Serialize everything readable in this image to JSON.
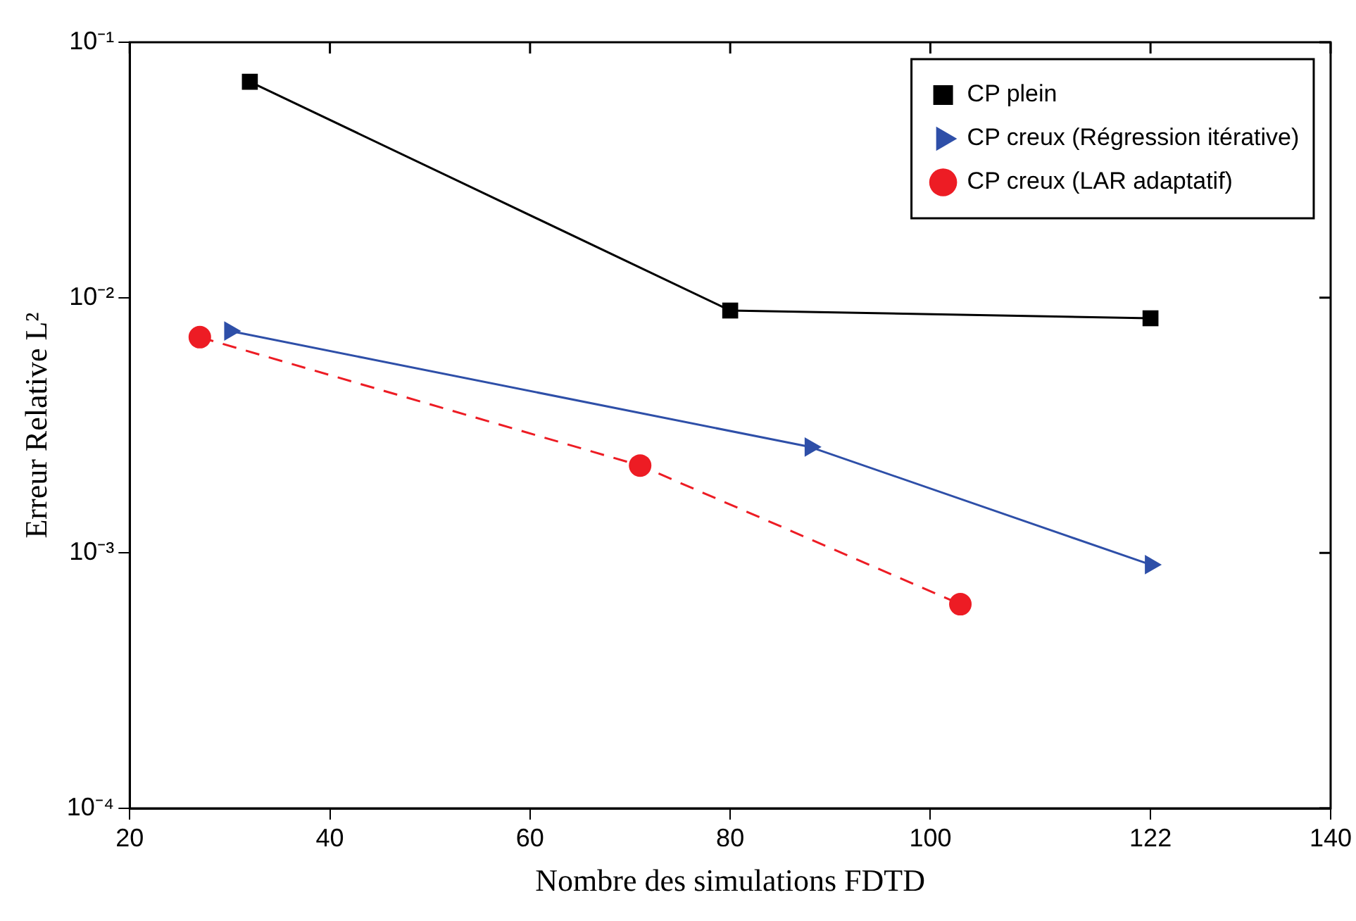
{
  "chart_data": {
    "type": "line",
    "xlabel": "Nombre des simulations FDTD",
    "ylabel": "Erreur Relative L²",
    "log": "y",
    "xlim": [
      20,
      140
    ],
    "xticks": [
      20,
      40,
      60,
      80,
      100,
      122,
      140
    ],
    "ylim": [
      0.0001,
      0.1
    ],
    "yticks": [
      {
        "value": 0.0001,
        "label": "10⁻⁴"
      },
      {
        "value": 0.001,
        "label": "10⁻³"
      },
      {
        "value": 0.01,
        "label": "10⁻²"
      },
      {
        "value": 0.1,
        "label": "10⁻¹"
      }
    ],
    "grid": false,
    "legend": "top right",
    "series": [
      {
        "name": "CP plein",
        "color": "#000000",
        "marker": "square",
        "line_style": "solid",
        "x": [
          32,
          80,
          122
        ],
        "values": [
          0.07,
          0.0089,
          0.0083
        ]
      },
      {
        "name": "CP creux (Régression itérative)",
        "color": "#2e4fa8",
        "marker": "triangle",
        "line_style": "solid",
        "x": [
          30,
          88,
          122
        ],
        "values": [
          0.0074,
          0.0026,
          0.0009
        ]
      },
      {
        "name": "CP creux (LAR adaptatif)",
        "color": "#ed1c24",
        "marker": "circle",
        "line_style": "dashed",
        "x": [
          27,
          71,
          103
        ],
        "values": [
          0.007,
          0.0022,
          0.00063
        ]
      }
    ]
  }
}
